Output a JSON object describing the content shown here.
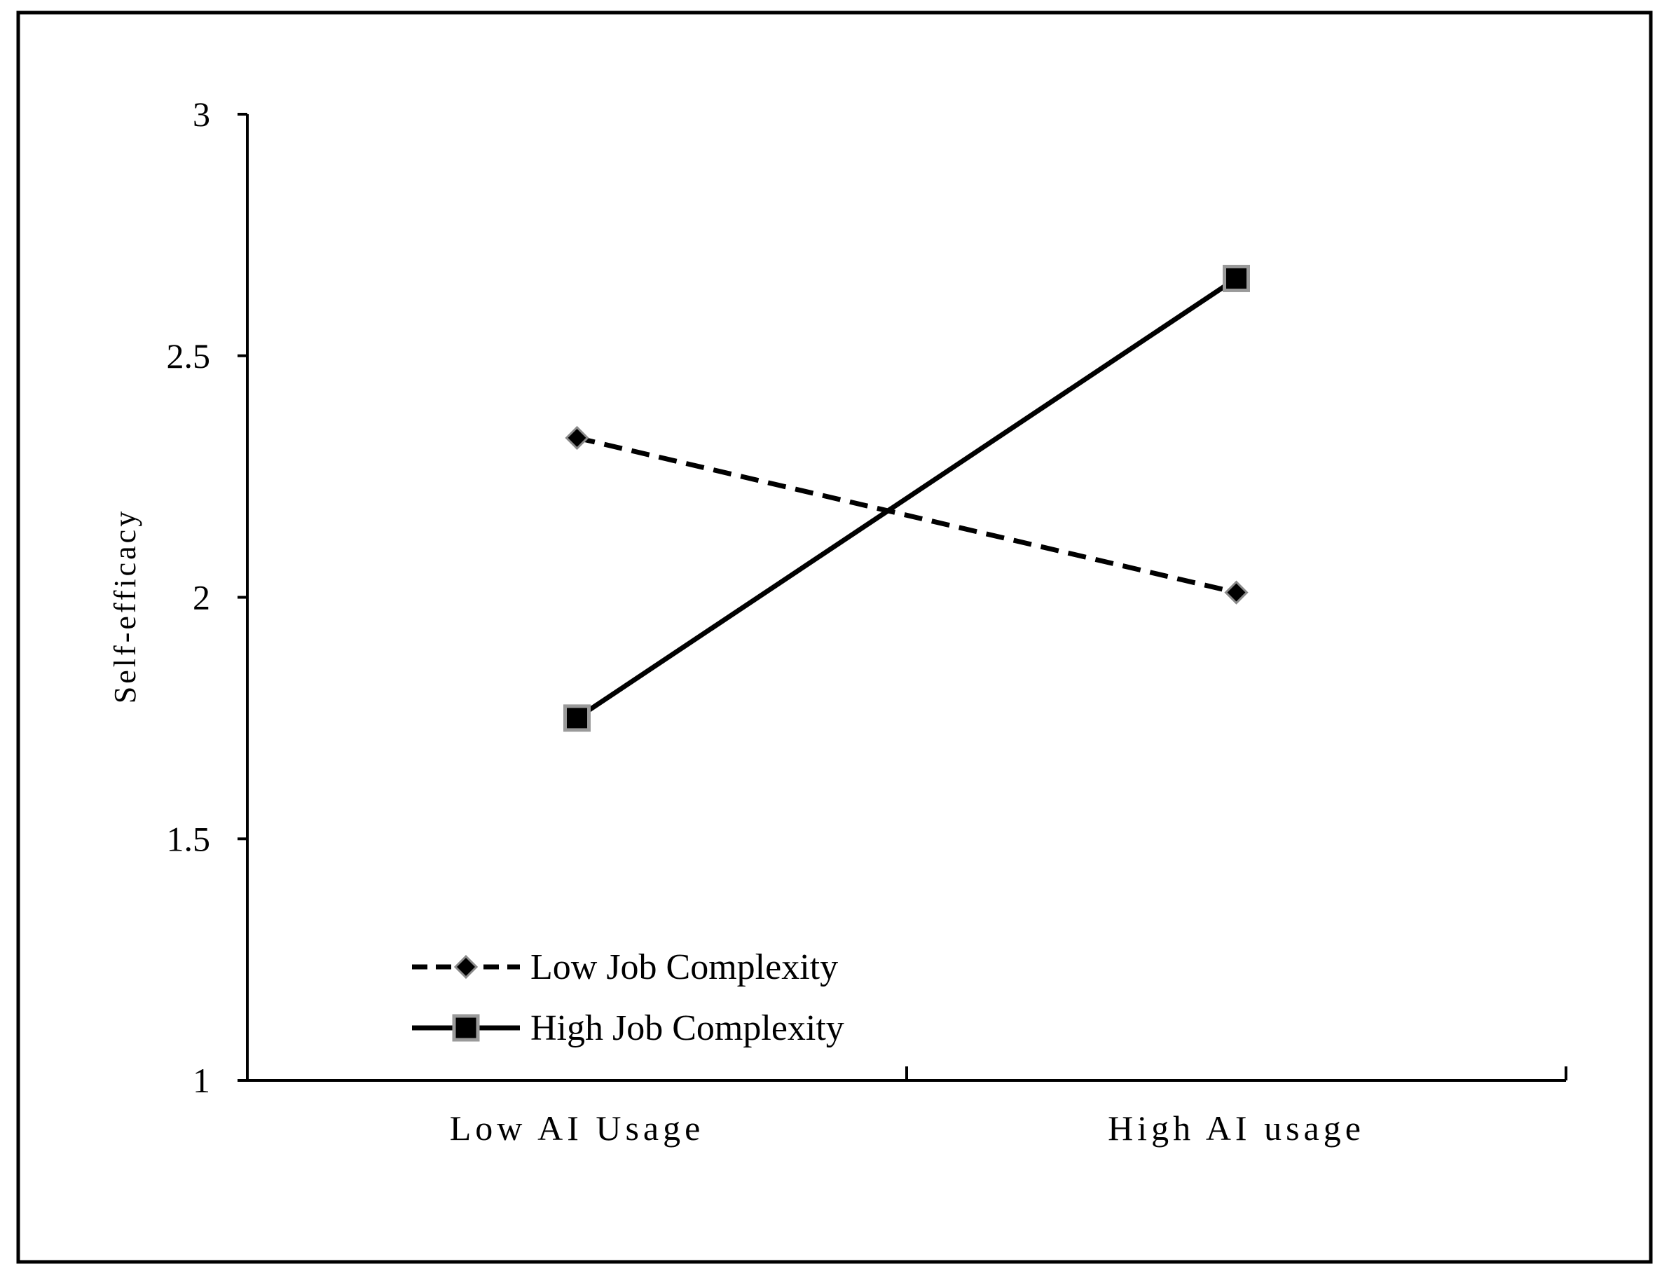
{
  "chart_data": {
    "type": "line",
    "categories": [
      "Low AI Usage",
      "High AI usage"
    ],
    "ylabel": "Self-efficacy",
    "xlabel": "",
    "ylim": [
      1,
      3
    ],
    "yticks": [
      1,
      1.5,
      2,
      2.5,
      3
    ],
    "ytick_labels": [
      "1",
      "1.5",
      "2",
      "2.5",
      "3"
    ],
    "grid": false,
    "legend_position": "bottom-left",
    "series": [
      {
        "name": "Low Job Complexity",
        "values": [
          2.33,
          2.01
        ],
        "line_style": "dashed",
        "marker": "diamond",
        "color": "#000000"
      },
      {
        "name": "High Job Complexity",
        "values": [
          1.75,
          2.66
        ],
        "line_style": "solid",
        "marker": "square",
        "color": "#000000",
        "marker_edge_color": "#9a9a9a"
      }
    ]
  }
}
